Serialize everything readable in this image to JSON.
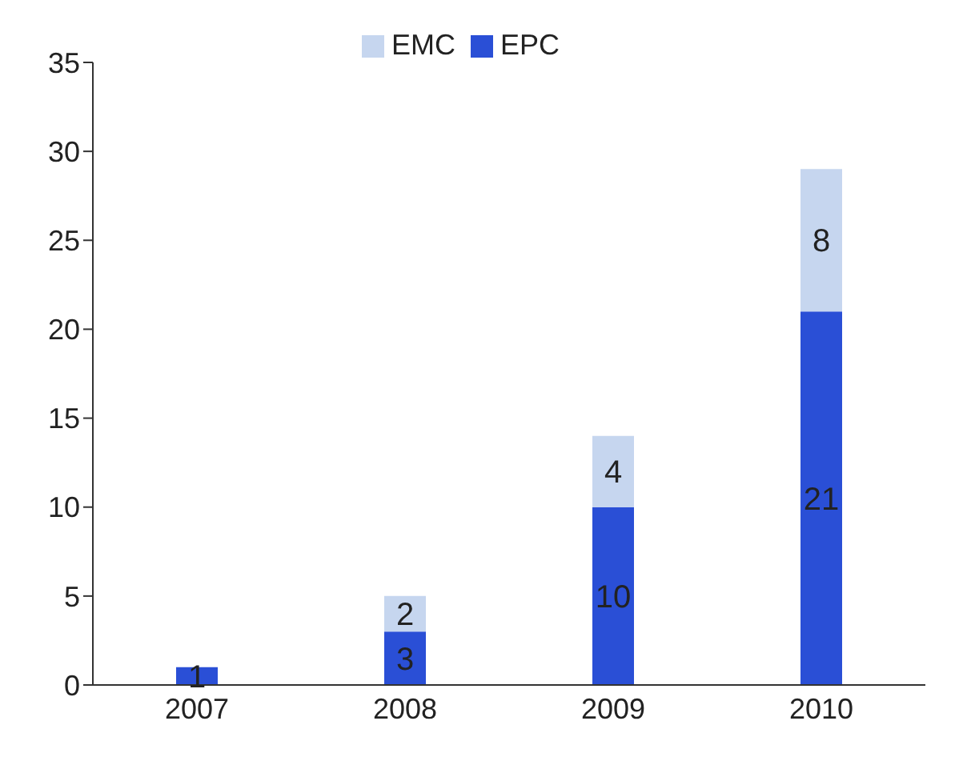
{
  "chart_data": {
    "type": "bar",
    "stacked": true,
    "categories": [
      "2007",
      "2008",
      "2009",
      "2010"
    ],
    "series": [
      {
        "name": "EPC",
        "color": "#2a4fd6",
        "values": [
          1,
          3,
          10,
          21
        ]
      },
      {
        "name": "EMC",
        "color": "#c6d6ef",
        "values": [
          null,
          2,
          4,
          8
        ]
      }
    ],
    "ylim": [
      0,
      35
    ],
    "yticks": [
      0,
      5,
      10,
      15,
      20,
      25,
      30,
      35
    ],
    "grid": false,
    "legend": "top",
    "data_labels": true
  }
}
